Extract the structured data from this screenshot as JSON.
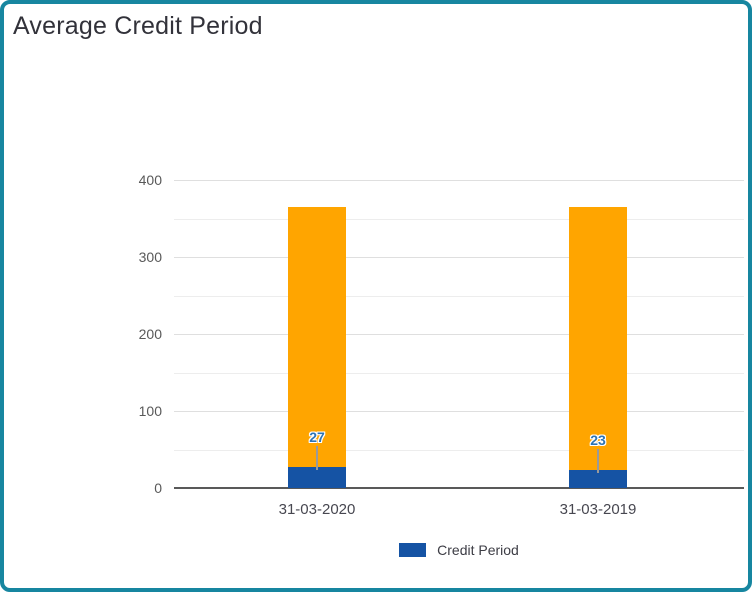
{
  "window": {
    "border_color": "#1786A0",
    "background_color": "#FFFFFF"
  },
  "chart_data": {
    "type": "bar",
    "subtype": "stacked",
    "title": "Average Credit Period",
    "categories": [
      "31-03-2020",
      "31-03-2019"
    ],
    "series": [
      {
        "name": "Credit Period",
        "color": "#1553A4",
        "values": [
          27,
          23
        ],
        "data_labels": [
          "27",
          "23"
        ]
      },
      {
        "name": "",
        "color": "#FFA500",
        "values": [
          338,
          342
        ]
      }
    ],
    "stack_totals": [
      365,
      365
    ],
    "xlabel": "",
    "ylabel": "",
    "ylim": [
      0,
      400
    ],
    "y_tick_labels": [
      "0",
      "100",
      "200",
      "300",
      "400"
    ],
    "y_tick_values": [
      0,
      100,
      200,
      300,
      400
    ],
    "y_minor_gridline_step": 50,
    "grid": "on",
    "legend": {
      "position": "bottom",
      "entries": [
        {
          "label": "Credit Period",
          "color": "#1553A4"
        }
      ]
    },
    "data_label_color": "#2E74B5",
    "axis_color": "#595959"
  }
}
